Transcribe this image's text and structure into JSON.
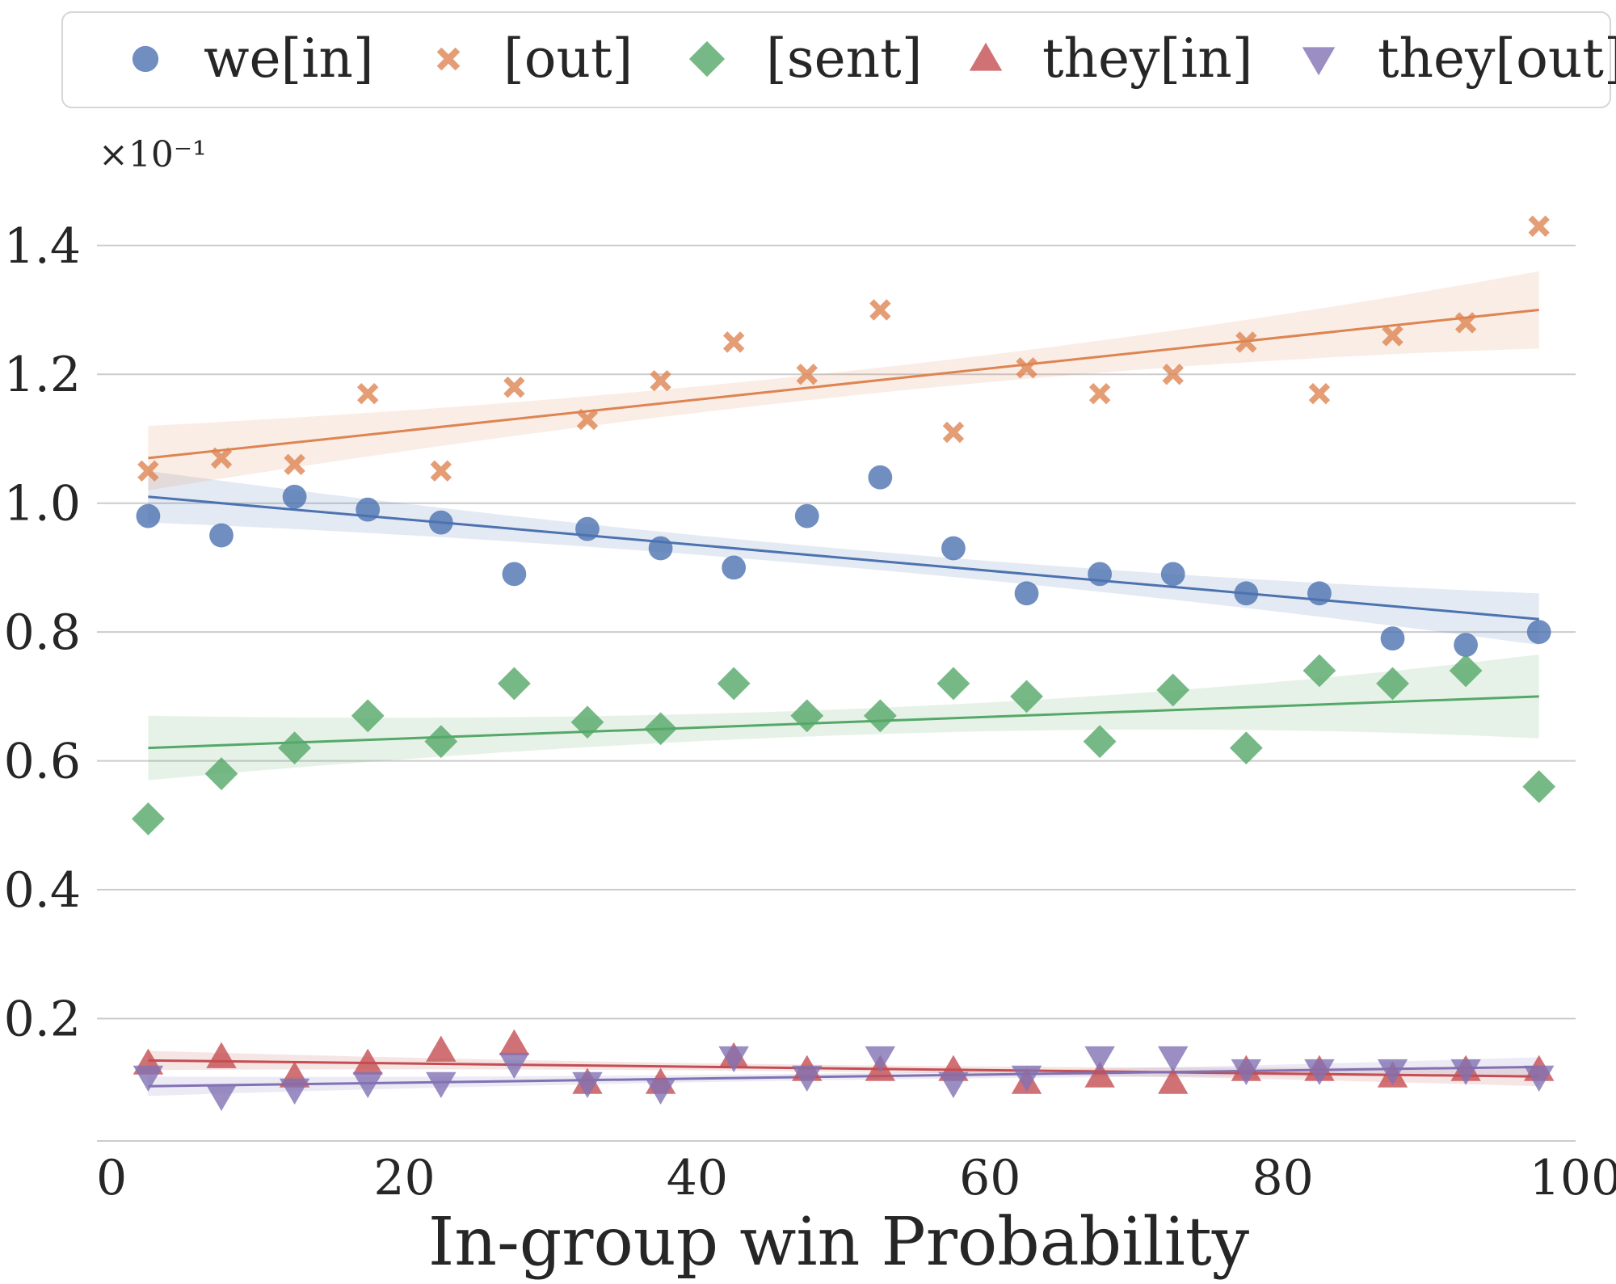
{
  "chart_data": {
    "type": "scatter",
    "title": "",
    "xlabel": "In-group win Probability",
    "ylabel": "",
    "y_scale_label": "×10⁻¹",
    "xlim": [
      -1,
      100
    ],
    "ylim": [
      0.01,
      1.48
    ],
    "xticks": [
      0,
      20,
      40,
      60,
      80,
      100
    ],
    "xtick_labels": [
      "0",
      "20",
      "40",
      "60",
      "80",
      "100"
    ],
    "yticks": [
      0.2,
      0.4,
      0.6,
      0.8,
      1.0,
      1.2,
      1.4
    ],
    "ytick_labels": [
      "0.2",
      "0.4",
      "0.6",
      "0.8",
      "1.0",
      "1.2",
      "1.4"
    ],
    "grid": "horizontal",
    "legend_position": "top",
    "x": [
      2.5,
      7.5,
      12.5,
      17.5,
      22.5,
      27.5,
      32.5,
      37.5,
      42.5,
      47.5,
      52.5,
      57.5,
      62.5,
      67.5,
      72.5,
      77.5,
      82.5,
      87.5,
      92.5,
      97.5
    ],
    "series": [
      {
        "name": "we[in]",
        "marker": "circle",
        "color": "#4c72b0",
        "values": [
          0.98,
          0.95,
          1.01,
          0.99,
          0.97,
          0.89,
          0.96,
          0.93,
          0.9,
          0.98,
          1.04,
          0.93,
          0.86,
          0.89,
          0.89,
          0.86,
          0.86,
          0.79,
          0.78,
          0.8
        ],
        "fit": {
          "start": 1.01,
          "end": 0.82,
          "band_start": 0.04,
          "band_end": 0.04
        }
      },
      {
        "name": "[out]",
        "marker": "x",
        "color": "#dd8452",
        "values": [
          1.05,
          1.07,
          1.06,
          1.17,
          1.05,
          1.18,
          1.13,
          1.19,
          1.25,
          1.2,
          1.3,
          1.11,
          1.21,
          1.17,
          1.2,
          1.25,
          1.17,
          1.26,
          1.28,
          1.43
        ],
        "fit": {
          "start": 1.07,
          "end": 1.3,
          "band_start": 0.05,
          "band_end": 0.06
        }
      },
      {
        "name": "[sent]",
        "marker": "diamond",
        "color": "#55a868",
        "values": [
          0.51,
          0.58,
          0.62,
          0.67,
          0.63,
          0.72,
          0.66,
          0.65,
          0.72,
          0.67,
          0.67,
          0.72,
          0.7,
          0.63,
          0.71,
          0.62,
          0.74,
          0.72,
          0.74,
          0.56
        ],
        "fit": {
          "start": 0.62,
          "end": 0.7,
          "band_start": 0.05,
          "band_end": 0.065
        }
      },
      {
        "name": "they[in]",
        "marker": "triangle-up",
        "color": "#c44e52",
        "values": [
          0.13,
          0.14,
          0.11,
          0.13,
          0.15,
          0.16,
          0.1,
          0.1,
          0.14,
          0.12,
          0.12,
          0.12,
          0.1,
          0.11,
          0.1,
          0.12,
          0.12,
          0.11,
          0.12,
          0.12
        ],
        "fit": {
          "start": 0.135,
          "end": 0.11,
          "band_start": 0.015,
          "band_end": 0.015
        }
      },
      {
        "name": "they[out]",
        "marker": "triangle-down",
        "color": "#8172b3",
        "values": [
          0.11,
          0.08,
          0.09,
          0.1,
          0.1,
          0.13,
          0.1,
          0.09,
          0.14,
          0.11,
          0.14,
          0.1,
          0.11,
          0.14,
          0.14,
          0.12,
          0.12,
          0.12,
          0.12,
          0.11
        ],
        "fit": {
          "start": 0.095,
          "end": 0.125,
          "band_start": 0.015,
          "band_end": 0.015
        }
      }
    ]
  }
}
